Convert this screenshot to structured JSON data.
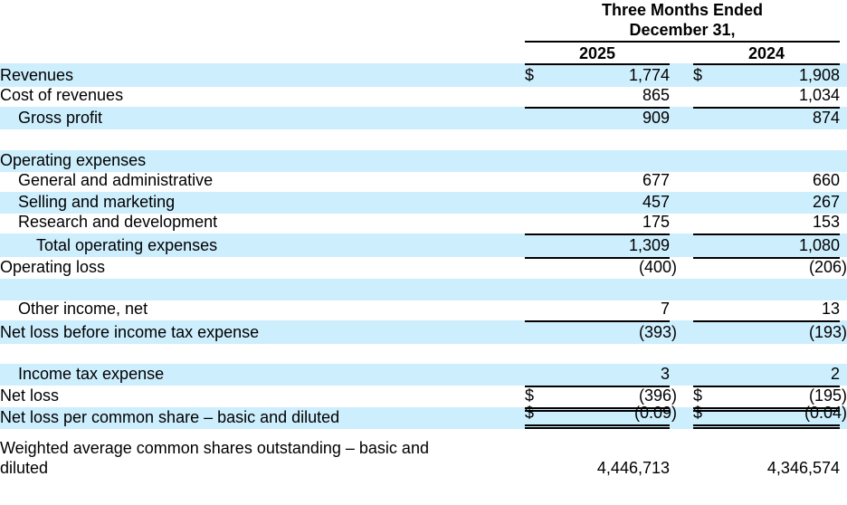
{
  "header": {
    "line1": "Three Months Ended",
    "line2": "December 31,",
    "years": [
      "2025",
      "2024"
    ]
  },
  "rows": {
    "revenues": {
      "label": "Revenues",
      "dollar": "$",
      "v": [
        "1,774",
        "1,908"
      ]
    },
    "cost": {
      "label": "Cost of revenues",
      "v": [
        "865",
        "1,034"
      ]
    },
    "gross": {
      "label": "Gross profit",
      "v": [
        "909",
        "874"
      ]
    },
    "opex": {
      "label": "Operating expenses"
    },
    "ga": {
      "label": "General and administrative",
      "v": [
        "677",
        "660"
      ]
    },
    "sm": {
      "label": "Selling and marketing",
      "v": [
        "457",
        "267"
      ]
    },
    "rd": {
      "label": "Research and development",
      "v": [
        "175",
        "153"
      ]
    },
    "total_opex": {
      "label": "Total operating expenses",
      "v": [
        "1,309",
        "1,080"
      ]
    },
    "op_loss": {
      "label": "Operating loss",
      "v": [
        "(400)",
        "(206)"
      ]
    },
    "other": {
      "label": "Other income, net",
      "v": [
        "7",
        "13"
      ]
    },
    "pretax": {
      "label": "Net loss before income tax expense",
      "v": [
        "(393)",
        "(193)"
      ]
    },
    "tax": {
      "label": "Income tax expense",
      "v": [
        "3",
        "2"
      ]
    },
    "net_loss": {
      "label": "Net loss",
      "dollar": "$",
      "v": [
        "(396)",
        "(195)"
      ]
    },
    "eps": {
      "label": "Net loss per common share – basic and diluted",
      "dollar": "$",
      "v": [
        "(0.09)",
        "(0.04)"
      ]
    },
    "shares": {
      "label_1": "Weighted average common shares outstanding – basic and",
      "label_2": "diluted",
      "v": [
        "4,446,713",
        "4,346,574"
      ]
    }
  },
  "colors": {
    "band": "#cdeefd"
  }
}
